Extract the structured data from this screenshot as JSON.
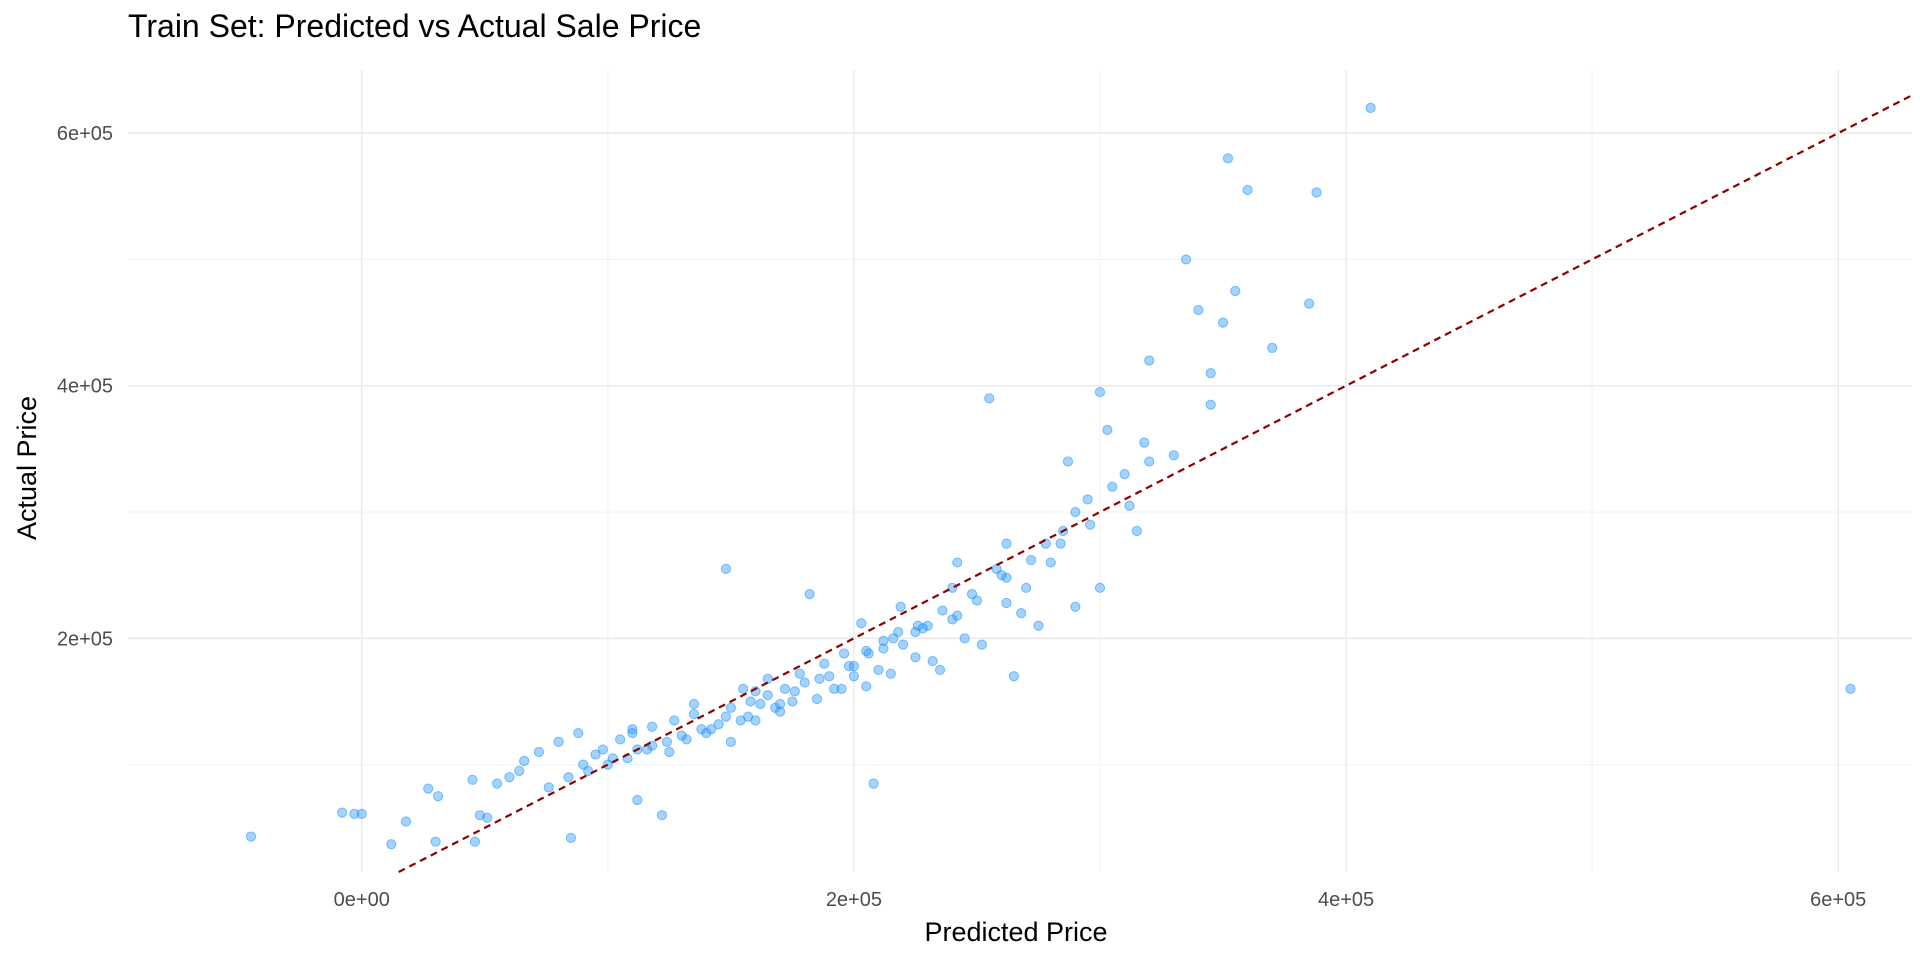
{
  "chart_data": {
    "type": "scatter",
    "title": "Train Set: Predicted vs Actual Sale Price",
    "xlabel": "Predicted Price",
    "ylabel": "Actual Price",
    "xlim": [
      -95000,
      630000
    ],
    "ylim": [
      15000,
      650000
    ],
    "x_ticks": [
      0,
      200000,
      400000,
      600000
    ],
    "x_tick_labels": [
      "0e+00",
      "2e+05",
      "4e+05",
      "6e+05"
    ],
    "y_ticks": [
      200000,
      400000,
      600000
    ],
    "y_tick_labels": [
      "2e+05",
      "4e+05",
      "6e+05"
    ],
    "grid": true,
    "reference_line": {
      "slope": 1,
      "intercept": 0,
      "style": "dashed",
      "color": "#8b0000"
    },
    "point_color": "#1e90ff",
    "series": [
      {
        "x": [
          -45000,
          -8000,
          -3000,
          0,
          12000,
          18000,
          27000,
          30000,
          31000,
          45000,
          46000,
          48000,
          51000,
          55000,
          60000,
          64000,
          66000,
          72000,
          80000,
          88000,
          85000,
          98000,
          105000,
          110000,
          112000,
          118000,
          122000,
          127000,
          135000,
          150000,
          148000,
          158000,
          165000,
          172000,
          180000,
          182000,
          190000,
          200000,
          208000,
          220000,
          230000,
          235000,
          240000,
          250000,
          255000,
          260000,
          265000,
          270000,
          280000,
          285000,
          290000,
          295000,
          300000,
          305000,
          310000,
          315000,
          320000,
          330000,
          335000,
          340000,
          345000,
          350000,
          352000,
          355000,
          360000,
          385000,
          388000,
          410000,
          605000,
          100000,
          125000,
          140000,
          160000,
          175000,
          195000,
          210000,
          225000,
          245000,
          268000,
          300000,
          118000,
          130000,
          145000,
          170000,
          185000,
          205000,
          215000,
          232000,
          252000,
          275000,
          290000,
          155000,
          165000,
          188000,
          196000,
          212000,
          228000,
          242000,
          262000,
          240000,
          200000,
          320000,
          345000,
          370000,
          150000,
          95000,
          110000,
          135000,
          160000,
          178000,
          205000,
          218000,
          258000,
          278000,
          303000,
          92000,
          102000,
          112000,
          124000,
          138000,
          148000,
          162000,
          176000,
          186000,
          198000,
          206000,
          216000,
          226000,
          236000,
          248000,
          262000,
          272000,
          284000,
          296000,
          312000,
          76000,
          84000,
          90000,
          108000,
          116000,
          132000,
          142000,
          154000,
          168000,
          192000,
          170000,
          157000,
          203000,
          219000,
          242000,
          212000,
          225000,
          262000,
          287000,
          318000
        ],
        "y": [
          43000,
          62000,
          61000,
          61000,
          37000,
          55000,
          81000,
          39000,
          75000,
          88000,
          39000,
          60000,
          58000,
          85000,
          90000,
          95000,
          103000,
          110000,
          118000,
          125000,
          42000,
          112000,
          120000,
          128000,
          72000,
          130000,
          60000,
          135000,
          140000,
          145000,
          255000,
          150000,
          155000,
          160000,
          165000,
          235000,
          170000,
          178000,
          85000,
          195000,
          210000,
          175000,
          215000,
          230000,
          390000,
          250000,
          170000,
          240000,
          260000,
          285000,
          300000,
          310000,
          395000,
          320000,
          330000,
          285000,
          340000,
          345000,
          500000,
          460000,
          410000,
          450000,
          580000,
          475000,
          555000,
          465000,
          553000,
          620000,
          160000,
          100000,
          110000,
          125000,
          135000,
          150000,
          160000,
          175000,
          185000,
          200000,
          220000,
          240000,
          115000,
          123000,
          132000,
          142000,
          152000,
          162000,
          172000,
          182000,
          195000,
          210000,
          225000,
          160000,
          168000,
          180000,
          188000,
          198000,
          208000,
          218000,
          228000,
          240000,
          170000,
          420000,
          385000,
          430000,
          118000,
          108000,
          125000,
          148000,
          158000,
          172000,
          190000,
          205000,
          255000,
          275000,
          365000,
          95000,
          105000,
          112000,
          118000,
          128000,
          138000,
          148000,
          158000,
          168000,
          178000,
          188000,
          200000,
          210000,
          222000,
          235000,
          248000,
          262000,
          275000,
          290000,
          305000,
          82000,
          90000,
          100000,
          105000,
          112000,
          120000,
          128000,
          135000,
          145000,
          160000,
          148000,
          138000,
          212000,
          225000,
          260000,
          192000,
          205000,
          275000,
          340000,
          355000
        ]
      }
    ]
  }
}
